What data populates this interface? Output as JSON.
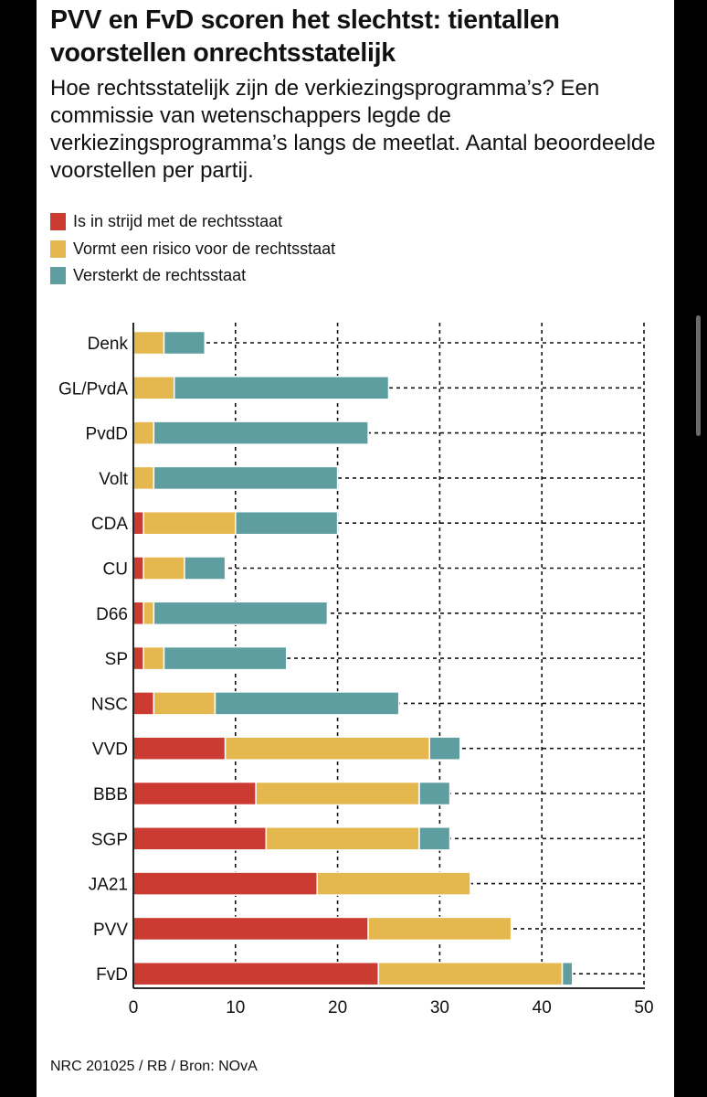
{
  "title": "PVV en FvD scoren het slechtst: tientallen voorstellen onrechtsstatelijk",
  "subtitle": "Hoe rechtsstatelijk zijn de verkiezingsprogramma’s? Een commissie van wetenschappers legde de verkiezingsprogramma’s langs de meetlat. Aantal beoordeelde voorstellen per partij.",
  "legend": [
    {
      "label": "Is in strijd met de rechtsstaat",
      "color": "#cc3b32"
    },
    {
      "label": "Vormt een risico voor de rechtsstaat",
      "color": "#e4b84e"
    },
    {
      "label": "Versterkt de rechtsstaat",
      "color": "#5e9ea0"
    }
  ],
  "source": "NRC 201025 / RB / Bron: NOvA",
  "chart_data": {
    "type": "bar",
    "orientation": "horizontal",
    "stacked": true,
    "categories": [
      "Denk",
      "GL/PvdA",
      "PvdD",
      "Volt",
      "CDA",
      "CU",
      "D66",
      "SP",
      "NSC",
      "VVD",
      "BBB",
      "SGP",
      "JA21",
      "PVV",
      "FvD"
    ],
    "series": [
      {
        "name": "Is in strijd met de rechtsstaat",
        "color": "#cc3b32",
        "values": [
          0,
          0,
          0,
          0,
          1,
          1,
          1,
          1,
          2,
          9,
          12,
          13,
          18,
          23,
          24
        ]
      },
      {
        "name": "Vormt een risico voor de rechtsstaat",
        "color": "#e4b84e",
        "values": [
          3,
          4,
          2,
          2,
          9,
          4,
          1,
          2,
          6,
          20,
          16,
          15,
          15,
          14,
          18
        ]
      },
      {
        "name": "Versterkt de rechtsstaat",
        "color": "#5e9ea0",
        "values": [
          4,
          21,
          21,
          18,
          10,
          4,
          17,
          12,
          18,
          3,
          3,
          3,
          0,
          0,
          1
        ]
      }
    ],
    "xlim": [
      0,
      50
    ],
    "xticks": [
      0,
      10,
      20,
      30,
      40,
      50
    ],
    "grid": "dashed"
  }
}
